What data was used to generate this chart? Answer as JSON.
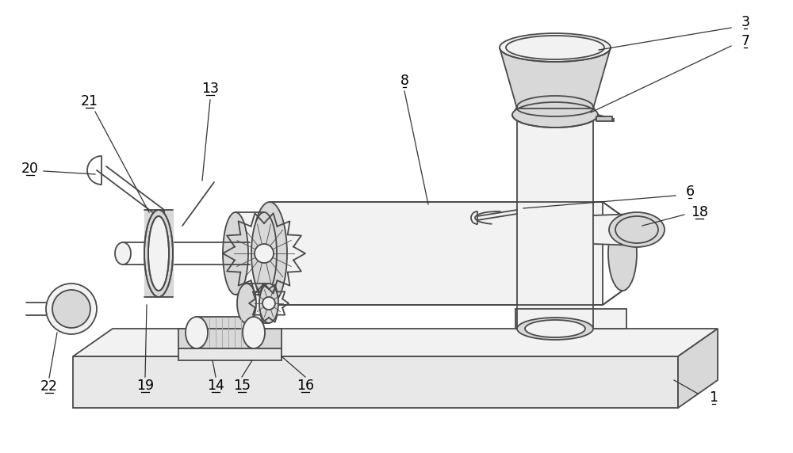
{
  "lc": "#4a4a4a",
  "lw": 1.3,
  "bg": "white",
  "gray1": "#e8e8e8",
  "gray2": "#d8d8d8",
  "gray3": "#f2f2f2",
  "gray4": "#c8c8c8"
}
